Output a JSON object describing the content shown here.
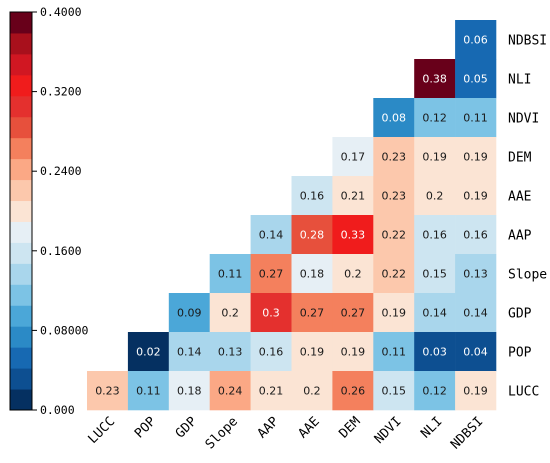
{
  "chart_data": {
    "type": "heatmap",
    "title": "",
    "variables": [
      "LUCC",
      "POP",
      "GDP",
      "Slope",
      "AAP",
      "AAE",
      "DEM",
      "NDVI",
      "NLI",
      "NDBSI"
    ],
    "rows": [
      {
        "label": "NDBSI",
        "values": [
          null,
          null,
          null,
          null,
          null,
          null,
          null,
          null,
          null,
          0.06
        ]
      },
      {
        "label": "NLI",
        "values": [
          null,
          null,
          null,
          null,
          null,
          null,
          null,
          null,
          0.38,
          0.05
        ]
      },
      {
        "label": "NDVI",
        "values": [
          null,
          null,
          null,
          null,
          null,
          null,
          null,
          0.08,
          0.12,
          0.11
        ]
      },
      {
        "label": "DEM",
        "values": [
          null,
          null,
          null,
          null,
          null,
          null,
          0.17,
          0.23,
          0.19,
          0.19
        ]
      },
      {
        "label": "AAE",
        "values": [
          null,
          null,
          null,
          null,
          null,
          0.16,
          0.21,
          0.23,
          0.2,
          0.19
        ]
      },
      {
        "label": "AAP",
        "values": [
          null,
          null,
          null,
          null,
          0.14,
          0.28,
          0.33,
          0.22,
          0.16,
          0.16
        ]
      },
      {
        "label": "Slope",
        "values": [
          null,
          null,
          null,
          0.11,
          0.27,
          0.18,
          0.2,
          0.22,
          0.15,
          0.13
        ]
      },
      {
        "label": "GDP",
        "values": [
          null,
          null,
          0.09,
          0.2,
          0.3,
          0.27,
          0.27,
          0.19,
          0.14,
          0.14
        ]
      },
      {
        "label": "POP",
        "values": [
          null,
          0.02,
          0.14,
          0.13,
          0.16,
          0.19,
          0.19,
          0.11,
          0.03,
          0.04
        ]
      },
      {
        "label": "LUCC",
        "values": [
          0.23,
          0.11,
          0.18,
          0.24,
          0.21,
          0.2,
          0.26,
          0.15,
          0.12,
          0.19
        ]
      }
    ],
    "colorbar": {
      "range": [
        0,
        0.4
      ],
      "ticks": [
        {
          "value": 0.4,
          "label": "0.4000"
        },
        {
          "value": 0.32,
          "label": "0.3200"
        },
        {
          "value": 0.24,
          "label": "0.2400"
        },
        {
          "value": 0.16,
          "label": "0.1600"
        },
        {
          "value": 0.08,
          "label": "0.08000"
        },
        {
          "value": 0,
          "label": "0.000"
        }
      ],
      "colors": [
        "#053061",
        "#0d4f91",
        "#1769b2",
        "#2b8ac6",
        "#4ba7d8",
        "#7cc3e5",
        "#a9d6ec",
        "#cde5f1",
        "#e6eff5",
        "#fbe4d4",
        "#fcc8ac",
        "#fba885",
        "#f4805d",
        "#e7503c",
        "#e4302e",
        "#f01c1c",
        "#d11722",
        "#a8101c",
        "#68001a"
      ]
    }
  }
}
